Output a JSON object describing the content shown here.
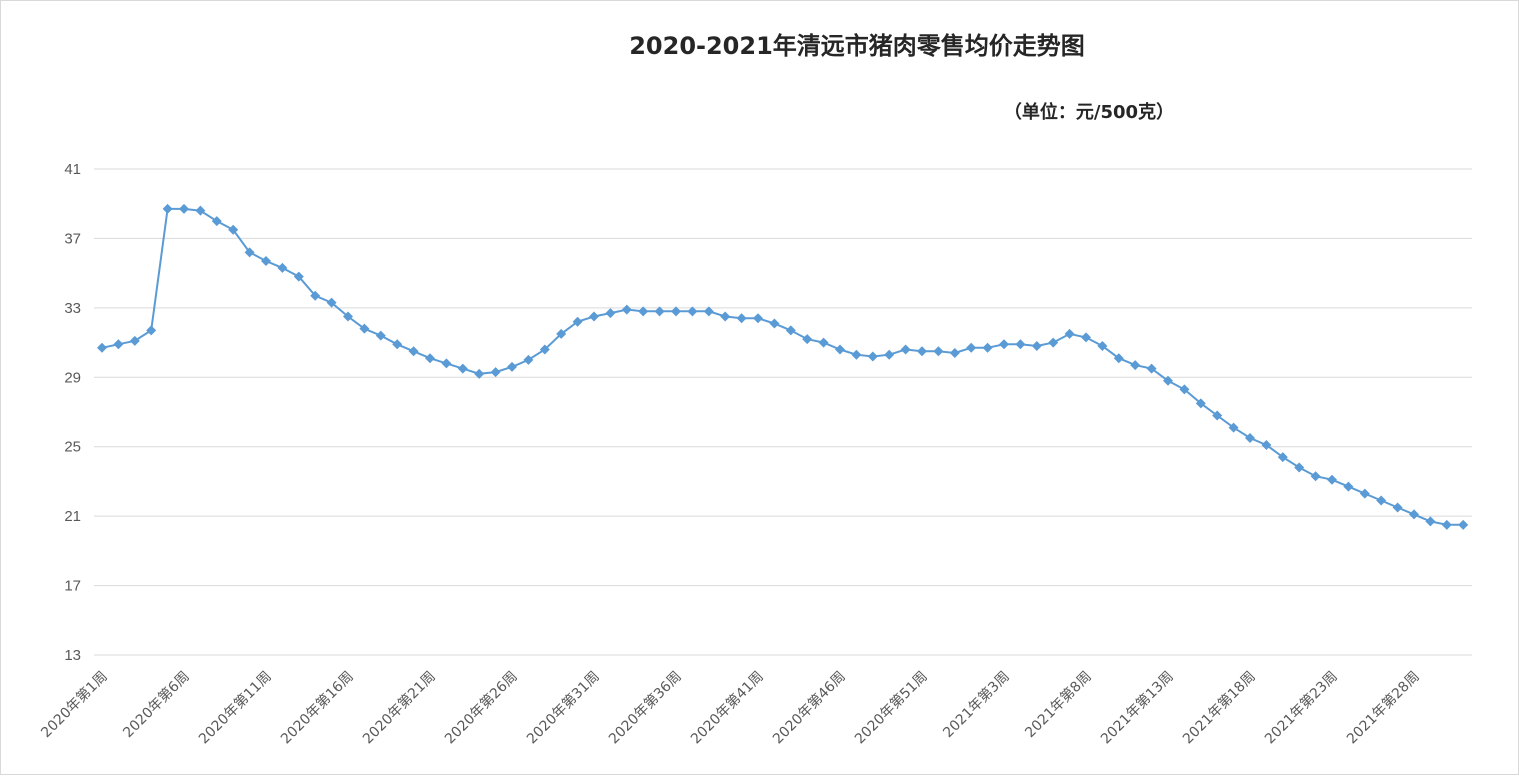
{
  "chart_data": {
    "type": "line",
    "title": "2020-2021年清远市猪肉零售均价走势图",
    "subtitle": "（单位：元/500克）",
    "xlabel": "",
    "ylabel": "",
    "ylim": [
      13,
      41
    ],
    "yticks": [
      13,
      17,
      21,
      25,
      29,
      33,
      37,
      41
    ],
    "grid": true,
    "legend": "none",
    "x_tick_labels": [
      "2020年第1周",
      "2020年第6周",
      "2020年第11周",
      "2020年第16周",
      "2020年第21周",
      "2020年第26周",
      "2020年第31周",
      "2020年第36周",
      "2020年第41周",
      "2020年第46周",
      "2020年第51周",
      "2021年第3周",
      "2021年第8周",
      "2021年第13周",
      "2021年第18周",
      "2021年第23周",
      "2021年第28周"
    ],
    "label_every": 5,
    "series_color": "#5b9bd5",
    "series": [
      {
        "values": [
          30.7,
          30.9,
          31.1,
          31.7,
          38.7,
          38.7,
          38.6,
          38.0,
          37.5,
          36.2,
          35.7,
          35.3,
          34.8,
          33.7,
          33.3,
          32.5,
          31.8,
          31.4,
          30.9,
          30.5,
          30.1,
          29.8,
          29.5,
          29.2,
          29.3,
          29.6,
          30.0,
          30.6,
          31.5,
          32.2,
          32.5,
          32.7,
          32.9,
          32.8,
          32.8,
          32.8,
          32.8,
          32.8,
          32.5,
          32.4,
          32.4,
          32.1,
          31.7,
          31.2,
          31.0,
          30.6,
          30.3,
          30.2,
          30.3,
          30.6,
          30.5,
          30.5,
          30.4,
          30.7,
          30.7,
          30.9,
          30.9,
          30.8,
          31.0,
          31.5,
          31.3,
          30.8,
          30.1,
          29.7,
          29.5,
          28.8,
          28.3,
          27.5,
          26.8,
          26.1,
          25.5,
          25.1,
          24.4,
          23.8,
          23.3,
          23.1,
          22.7,
          22.3,
          21.9,
          21.5,
          21.1,
          20.7,
          20.5,
          20.5
        ]
      }
    ]
  }
}
